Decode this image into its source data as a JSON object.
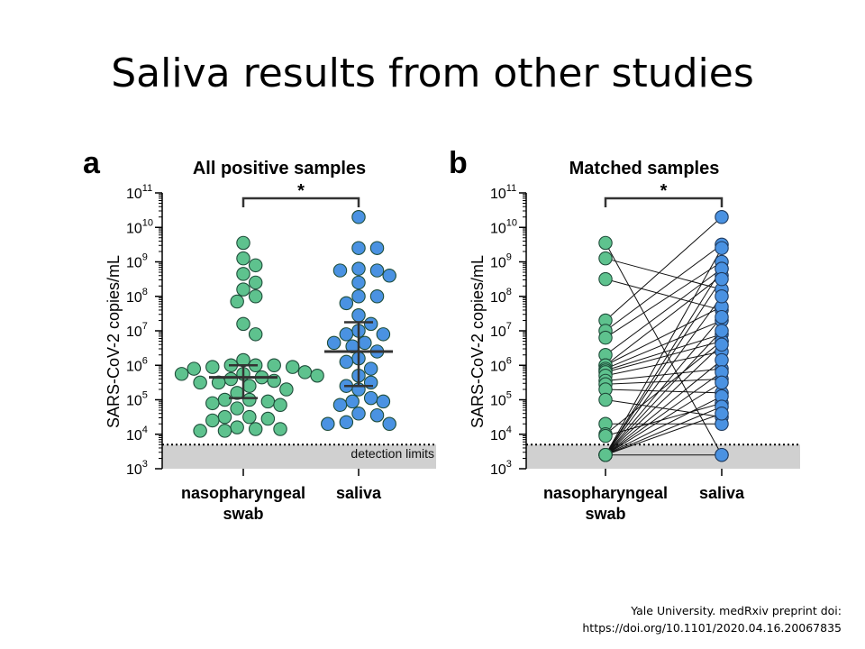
{
  "slide": {
    "title": "Saliva results from other studies"
  },
  "citation": {
    "line1": "Yale University. medRxiv preprint doi:",
    "line2": "https://doi.org/10.1101/2020.04.16.20067835"
  },
  "colors": {
    "nasopharyngeal": "#5ec28e",
    "saliva": "#4a92e2",
    "detection_band": "#d0d0d0"
  },
  "chart_data": [
    {
      "panel": "a",
      "type": "scatter",
      "title": "All positive samples",
      "ylabel": "SARS-CoV-2 copies/mL",
      "yscale": "log",
      "ylim": [
        1000,
        100000000000
      ],
      "ytick_exponents": [
        3,
        4,
        5,
        6,
        7,
        8,
        9,
        10,
        11
      ],
      "categories": [
        "nasopharyngeal\nswab",
        "saliva"
      ],
      "detection_limit_label": "detection limits",
      "detection_limit": 5000,
      "significance": "*",
      "series": [
        {
          "category": "nasopharyngeal\nswab",
          "log10_values": [
            9.55,
            9.1,
            8.9,
            8.65,
            8.4,
            8.2,
            8.0,
            7.85,
            7.2,
            6.9,
            6.15,
            6.0,
            6.0,
            6.0,
            5.95,
            5.95,
            5.9,
            5.8,
            5.75,
            5.75,
            5.7,
            5.65,
            5.6,
            5.55,
            5.5,
            5.5,
            5.4,
            5.3,
            5.2,
            5.0,
            5.0,
            4.95,
            4.9,
            4.85,
            4.75,
            4.5,
            4.5,
            4.45,
            4.4,
            4.2,
            4.15,
            4.15,
            4.1,
            4.1
          ],
          "median_log10": 5.65,
          "iqr_log10": [
            5.05,
            6.0
          ]
        },
        {
          "category": "saliva",
          "log10_values": [
            10.3,
            9.4,
            9.4,
            8.8,
            8.75,
            8.75,
            8.6,
            8.4,
            8.0,
            8.0,
            7.8,
            7.45,
            7.2,
            7.0,
            6.9,
            6.9,
            6.65,
            6.65,
            6.55,
            6.4,
            6.2,
            6.1,
            5.9,
            5.7,
            5.5,
            5.4,
            5.3,
            5.05,
            4.95,
            4.95,
            4.85,
            4.6,
            4.55,
            4.35,
            4.3,
            4.3
          ],
          "median_log10": 6.4,
          "iqr_log10": [
            5.4,
            7.25
          ]
        }
      ]
    },
    {
      "panel": "b",
      "type": "scatter",
      "title": "Matched samples",
      "ylabel": "SARS-CoV-2 copies/mL",
      "yscale": "log",
      "ylim": [
        1000,
        100000000000
      ],
      "ytick_exponents": [
        3,
        4,
        5,
        6,
        7,
        8,
        9,
        10,
        11
      ],
      "categories": [
        "nasopharyngeal\nswab",
        "saliva"
      ],
      "detection_limit": 5000,
      "significance": "*",
      "pairs_log10": [
        [
          9.55,
          3.4
        ],
        [
          9.1,
          8.2
        ],
        [
          8.5,
          7.6
        ],
        [
          7.3,
          10.3
        ],
        [
          7.0,
          9.5
        ],
        [
          6.8,
          9.0
        ],
        [
          6.3,
          8.8
        ],
        [
          6.0,
          8.6
        ],
        [
          6.0,
          7.7
        ],
        [
          5.9,
          7.3
        ],
        [
          5.85,
          6.9
        ],
        [
          5.8,
          6.7
        ],
        [
          5.7,
          6.4
        ],
        [
          5.55,
          5.9
        ],
        [
          5.45,
          5.6
        ],
        [
          5.3,
          5.2
        ],
        [
          5.0,
          4.5
        ],
        [
          4.3,
          4.3
        ],
        [
          4.0,
          6.7
        ],
        [
          3.95,
          4.9
        ],
        [
          3.4,
          9.4
        ],
        [
          3.4,
          8.8
        ],
        [
          3.4,
          8.5
        ],
        [
          3.4,
          8.0
        ],
        [
          3.4,
          7.4
        ],
        [
          3.4,
          7.0
        ],
        [
          3.4,
          6.6
        ],
        [
          3.4,
          6.15
        ],
        [
          3.4,
          5.8
        ],
        [
          3.4,
          5.5
        ],
        [
          3.4,
          5.1
        ],
        [
          3.4,
          4.8
        ],
        [
          3.4,
          4.6
        ],
        [
          3.4,
          3.4
        ]
      ]
    }
  ]
}
